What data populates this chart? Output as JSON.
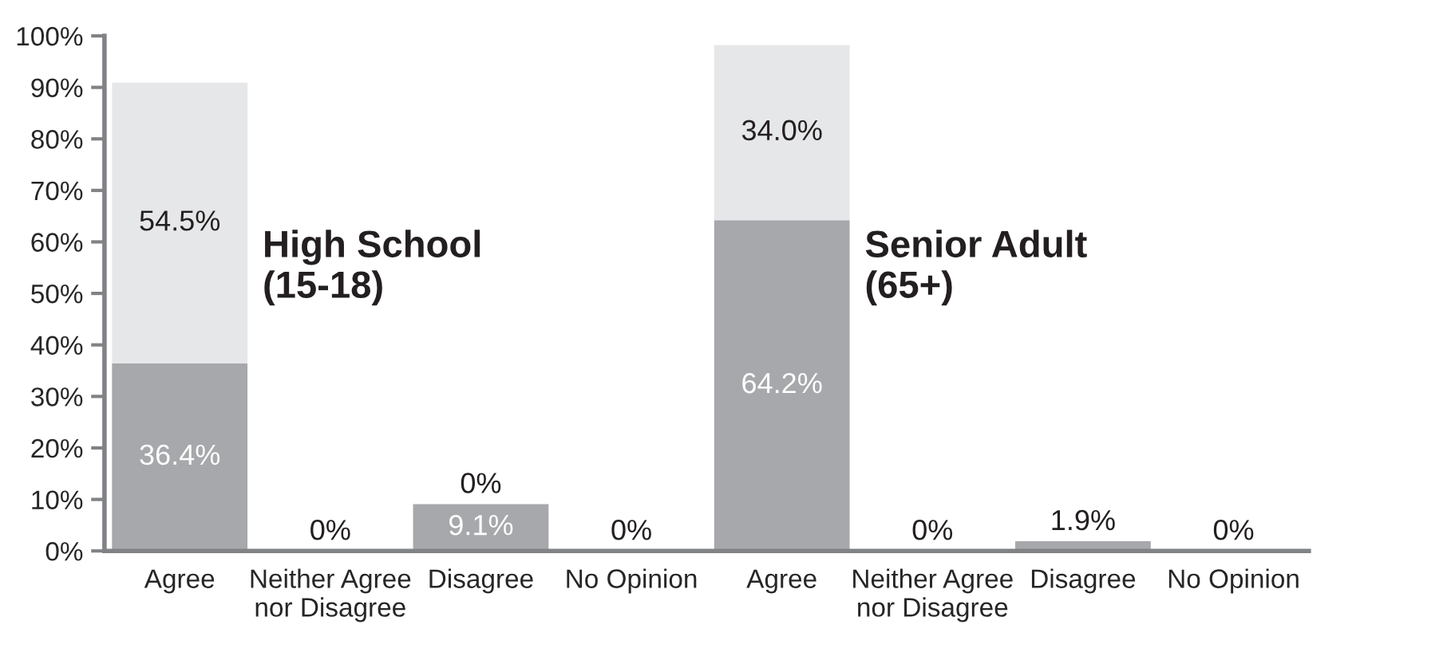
{
  "chart_data": {
    "type": "bar",
    "stacked": true,
    "categories": [
      "Agree",
      "Neither Agree\nnor Disagree",
      "Disagree",
      "No Opinion",
      "Agree",
      "Neither Agree\nnor Disagree",
      "Disagree",
      "No Opinion"
    ],
    "series": [
      {
        "color": "#a7a8ab",
        "values": [
          36.4,
          0,
          9.1,
          0,
          64.2,
          0,
          1.9,
          0
        ],
        "value_labels": [
          "36.4%",
          "0%",
          "9.1%",
          "0%",
          "64.2%",
          "0%",
          "1.9%",
          "0%"
        ]
      },
      {
        "color": "#e6e7e8",
        "values": [
          54.5,
          null,
          0,
          null,
          34.0,
          null,
          null,
          null
        ],
        "value_labels": [
          "54.5%",
          null,
          "0%",
          null,
          "34.0%",
          null,
          null,
          null
        ]
      }
    ],
    "ylim": [
      0,
      100
    ],
    "yticks": [
      {
        "value": 0,
        "label": "0%"
      },
      {
        "value": 10,
        "label": "10%"
      },
      {
        "value": 20,
        "label": "20%"
      },
      {
        "value": 30,
        "label": "30%"
      },
      {
        "value": 40,
        "label": "40%"
      },
      {
        "value": 50,
        "label": "50%"
      },
      {
        "value": 60,
        "label": "60%"
      },
      {
        "value": 70,
        "label": "70%"
      },
      {
        "value": 80,
        "label": "80%"
      },
      {
        "value": 90,
        "label": "90%"
      },
      {
        "value": 100,
        "label": "100%"
      }
    ],
    "annotations": [
      "High School\n(15-18)",
      "Senior Adult\n(65+)"
    ],
    "grid": false,
    "legend": false
  }
}
